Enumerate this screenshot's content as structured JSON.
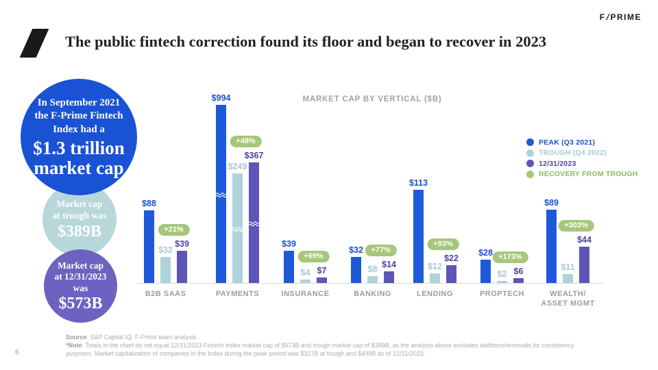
{
  "header": {
    "logo_f": "F",
    "logo_slash": "/",
    "logo_prime": "PRIME",
    "title": "The public fintech correction found its floor and began to recover in 2023"
  },
  "callouts": {
    "peak": {
      "small": "In September 2021\nthe F-Prime Fintech\nIndex had a",
      "big": "$1.3 trillion\nmarket cap",
      "color": "#1952d4"
    },
    "trough": {
      "small": "Market cap\nat trough was",
      "big": "$389B",
      "color": "#b7d7db"
    },
    "current": {
      "small": "Market cap\nat 12/31/2023\nwas",
      "big": "$573B",
      "color": "#6c63c0"
    }
  },
  "chart_data": {
    "type": "bar",
    "title": "MARKET CAP BY VERTICAL ($B)",
    "unit": "$B",
    "categories": [
      "B2B SAAS",
      "PAYMENTS",
      "INSURANCE",
      "BANKING",
      "LENDING",
      "PROPTECH",
      "WEALTH/\nASSET MGMT"
    ],
    "series": [
      {
        "name": "PEAK (Q3 2021)",
        "color": "#1d59da",
        "label_color": "#1b50cc",
        "values": [
          88,
          994,
          39,
          32,
          113,
          28,
          89
        ]
      },
      {
        "name": "TROUGH (Q4 2022)",
        "color": "#aed3da",
        "label_color": "#a3cbd5",
        "values": [
          32,
          249,
          4,
          8,
          12,
          2,
          11
        ]
      },
      {
        "name": "12/31/2023",
        "color": "#5e55b8",
        "label_color": "#4d41a6",
        "values": [
          39,
          367,
          7,
          14,
          22,
          6,
          44
        ]
      }
    ],
    "recovery": {
      "name": "RECOVERY FROM TROUGH",
      "color": "#a6c67b",
      "label_color": "#8fba68",
      "values": [
        "+21%",
        "+48%",
        "+69%",
        "+77%",
        "+93%",
        "+173%",
        "+303%"
      ]
    },
    "broken_axis_category": "PAYMENTS",
    "legend_position": "right",
    "grid": false
  },
  "footer": {
    "source_label": "Source",
    "source_text": ": S&P Capital IQ, F-Prime team analysis",
    "note_label": "*Note",
    "note_text": ": Totals in the chart do not equal 12/31/2023 Fintech Index market cap of $573B and trough market cap of $389B, as the analysis above excludes additions/removals for consistency purposes. Market capitalization of companies in the Index during the peak period was $317B at trough and $499B as of 12/31/2023.",
    "page_number": "6"
  }
}
